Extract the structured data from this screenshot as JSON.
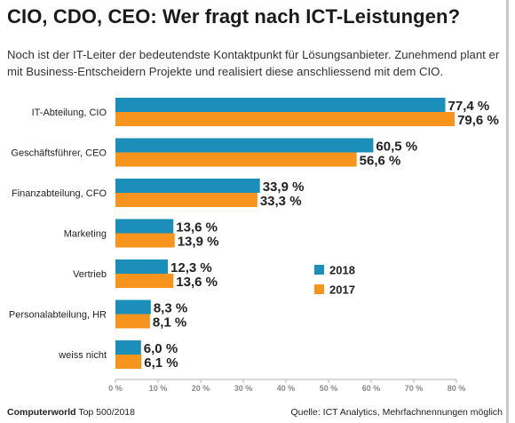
{
  "title": "CIO, CDO, CEO: Wer fragt nach ICT-Leistungen?",
  "subtitle": "Noch ist der IT-Leiter der bedeutendste Kontaktpunkt für Lösungsanbieter. Zunehmend plant er mit Business-Entscheidern Projekte und realisiert diese anschliessend mit dem CIO.",
  "footer": {
    "brand": "Computerworld",
    "publication": "Top 500/2018",
    "source": "Quelle: ICT Analytics, Mehrfachnennungen möglich"
  },
  "colors": {
    "series_2018": "#1b8fb9",
    "series_2017": "#f7941d",
    "axis": "#b0b0b0"
  },
  "chart_data": {
    "type": "bar",
    "orientation": "horizontal",
    "categories": [
      "IT-Abteilung, CIO",
      "Geschäftsführer, CEO",
      "Finanzabteilung, CFO",
      "Marketing",
      "Vertrieb",
      "Personalabteilung, HR",
      "weiss nicht"
    ],
    "series": [
      {
        "name": "2018",
        "values": [
          77.4,
          60.5,
          33.9,
          13.6,
          12.3,
          8.3,
          6.0
        ],
        "labels": [
          "77,4 %",
          "60,5 %",
          "33,9 %",
          "13,6 %",
          "12,3 %",
          "8,3 %",
          "6,0 %"
        ]
      },
      {
        "name": "2017",
        "values": [
          79.6,
          56.6,
          33.3,
          13.9,
          13.6,
          8.1,
          6.1
        ],
        "labels": [
          "79,6 %",
          "56,6 %",
          "33,3 %",
          "13,9 %",
          "13,6 %",
          "8,1 %",
          "6,1 %"
        ]
      }
    ],
    "xlim": [
      0,
      80
    ],
    "xticks": [
      0,
      10,
      20,
      30,
      40,
      50,
      60,
      70,
      80
    ],
    "xtick_labels": [
      "0 %",
      "10 %",
      "20 %",
      "30 %",
      "40 %",
      "50 %",
      "60 %",
      "70 %",
      "80 %"
    ],
    "legend_position": "right"
  }
}
